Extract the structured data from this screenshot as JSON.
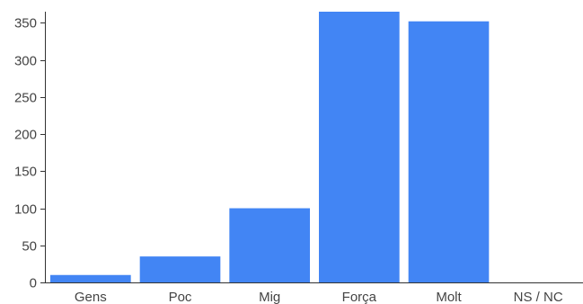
{
  "chart_data": {
    "type": "bar",
    "categories": [
      "Gens",
      "Poc",
      "Mig",
      "Força",
      "Molt",
      "NS / NC"
    ],
    "values": [
      10,
      35,
      100,
      365,
      352,
      0
    ],
    "ylim": [
      0,
      365
    ],
    "yticks": [
      0,
      50,
      100,
      150,
      200,
      250,
      300,
      350
    ],
    "grid": false,
    "legend": "none",
    "bar_color": "#4285f4",
    "axis_color": "#333333",
    "label_color": "#444444"
  }
}
